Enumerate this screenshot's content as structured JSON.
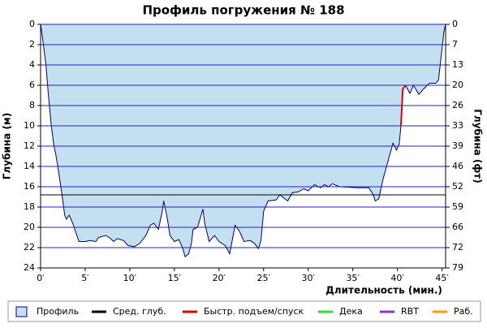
{
  "chart_data": {
    "type": "area",
    "title": "Профиль погружения № 188",
    "x_label": "Длительность (мин.)",
    "y_label": "Глубина (м)",
    "y2_label": "Глубина (фт)",
    "inverted_y": true,
    "grid": true,
    "xlim": [
      0,
      45.4
    ],
    "ylim": [
      0,
      24
    ],
    "y2lim": [
      0,
      78.74
    ],
    "xticks": [
      {
        "value": 0,
        "label": "0′"
      },
      {
        "value": 5,
        "label": "5′"
      },
      {
        "value": 10,
        "label": "10′"
      },
      {
        "value": 15,
        "label": "15′"
      },
      {
        "value": 20,
        "label": "20′"
      },
      {
        "value": 25,
        "label": "25′"
      },
      {
        "value": 30,
        "label": "30′"
      },
      {
        "value": 35,
        "label": "35′"
      },
      {
        "value": 40,
        "label": "40′"
      },
      {
        "value": 45,
        "label": "45′"
      }
    ],
    "yticks": [
      0,
      2,
      4,
      6,
      8,
      10,
      12,
      14,
      16,
      18,
      20,
      22,
      24
    ],
    "y2ticks": [
      0,
      {
        "value": 6.56,
        "label": "7"
      },
      {
        "value": 13.12,
        "label": "13"
      },
      {
        "value": 19.69,
        "label": "20"
      },
      {
        "value": 26.25,
        "label": "26"
      },
      {
        "value": 32.81,
        "label": "33"
      },
      {
        "value": 39.37,
        "label": "39"
      },
      {
        "value": 45.93,
        "label": "46"
      },
      {
        "value": 52.49,
        "label": "52"
      },
      {
        "value": 59.06,
        "label": "59"
      },
      {
        "value": 65.62,
        "label": "66"
      },
      {
        "value": 72.18,
        "label": "72"
      },
      {
        "value": 78.74,
        "label": "79"
      }
    ],
    "series": [
      {
        "name": "Профиль",
        "color": "#c4e0f0",
        "x": [
          0,
          0.2,
          0.6,
          0.9,
          1.2,
          1.5,
          1.7,
          2.0,
          2.4,
          2.7,
          2.9,
          3.2,
          3.6,
          4.3,
          5.0,
          5.5,
          6.2,
          6.5,
          7.3,
          7.7,
          8.2,
          8.6,
          9.3,
          9.8,
          10.5,
          11.1,
          11.8,
          12.3,
          12.7,
          13.2,
          13.6,
          13.8,
          14.2,
          14.5,
          15,
          15.5,
          15.9,
          16.2,
          16.6,
          16.9,
          17.1,
          17.6,
          18.2,
          18.4,
          18.9,
          19.5,
          20,
          20.7,
          21.2,
          21.8,
          22.3,
          22.8,
          23.5,
          24.0,
          24.4,
          24.7,
          25,
          25.5,
          26.4,
          26.8,
          27.7,
          28.2,
          28.9,
          29.5,
          30,
          30.7,
          31.4,
          31.8,
          32.3,
          32.7,
          33.5,
          35.5,
          36.8,
          37.3,
          37.5,
          37.9,
          38.4,
          38.9,
          39.5,
          39.9,
          40.2,
          40.4,
          40.6,
          40.9,
          41.4,
          41.8,
          42.4,
          42.9,
          43.6,
          44.3,
          44.6,
          44.9,
          45.2,
          45.4
        ],
        "values": [
          0,
          1.2,
          4,
          7.2,
          10,
          12,
          12.8,
          14.4,
          16.8,
          18.8,
          19.2,
          18.8,
          19.6,
          21.4,
          21.4,
          21.3,
          21.4,
          21,
          20.8,
          21,
          21.4,
          21.1,
          21.3,
          21.8,
          21.9,
          21.6,
          20.8,
          19.8,
          19.6,
          20.2,
          18.6,
          17.4,
          19.1,
          20.8,
          21.4,
          21.2,
          22,
          22.9,
          22.6,
          21.6,
          20.2,
          20,
          18.2,
          19.6,
          21.4,
          20.8,
          21.4,
          21.8,
          22.6,
          19.8,
          20.4,
          21.4,
          21.3,
          21.6,
          22.1,
          21.3,
          18.4,
          17.4,
          17.3,
          16.8,
          17.4,
          16.6,
          16.5,
          16.2,
          16.4,
          15.8,
          16.1,
          15.8,
          16,
          15.7,
          16,
          16.1,
          16.1,
          16.8,
          17.4,
          17.2,
          15.2,
          13.6,
          11.7,
          12.4,
          11.8,
          10,
          6.4,
          6,
          6.8,
          6,
          6.9,
          6.4,
          5.8,
          5.8,
          5.5,
          3.2,
          0.8,
          0
        ]
      },
      {
        "name": "Сред. глуб.",
        "color": "#000000",
        "value": 16.8
      },
      {
        "name": "Быстр. подъем/спуск",
        "color": "#e00000",
        "x": [
          40.4,
          40.6,
          40.9
        ],
        "values": [
          10,
          6.4,
          6
        ]
      },
      {
        "name": "Дека",
        "color": "#33dd33"
      },
      {
        "name": "RBT",
        "color": "#8833dd"
      },
      {
        "name": "Раб.",
        "color": "#ff9900"
      }
    ]
  }
}
